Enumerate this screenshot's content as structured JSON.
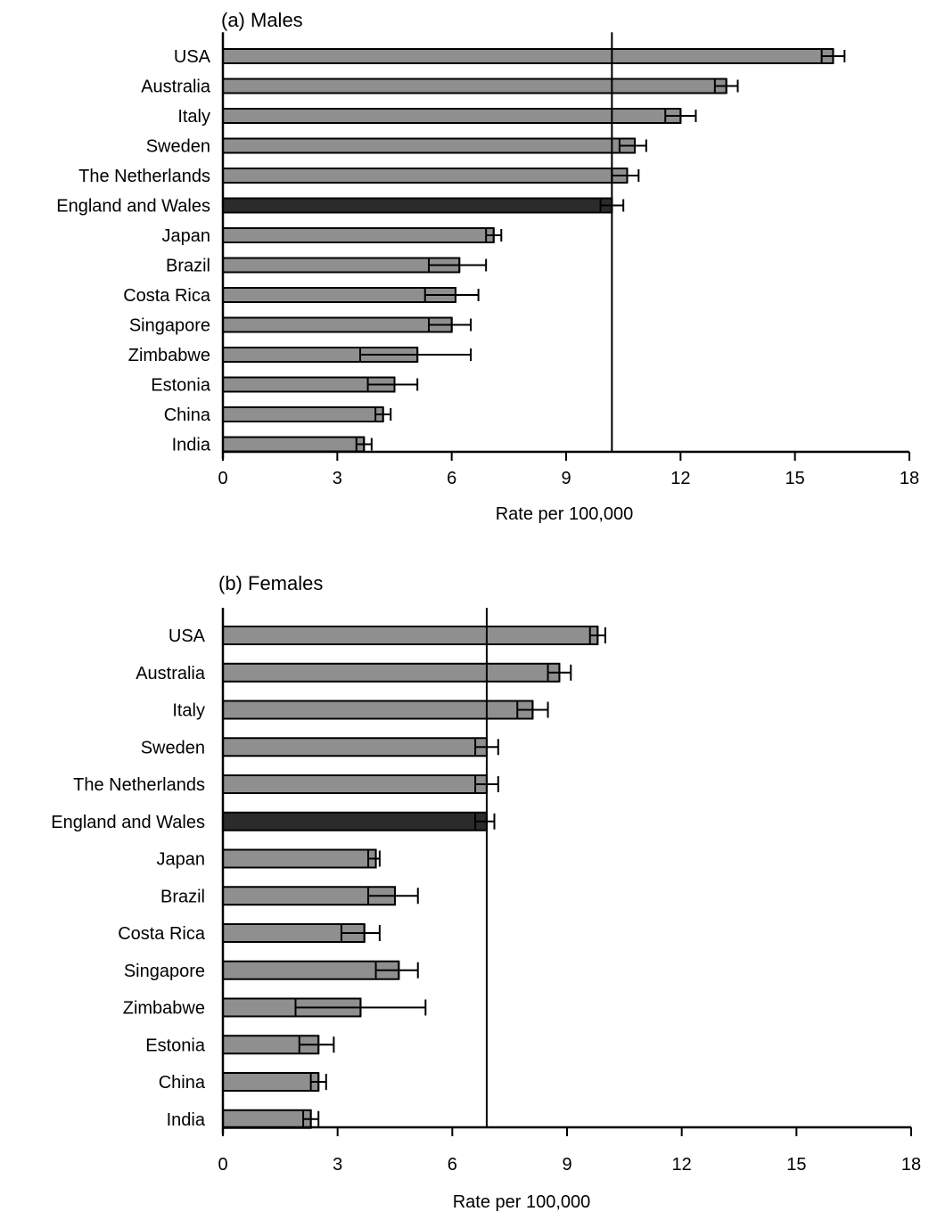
{
  "chart_data": [
    {
      "type": "bar",
      "orientation": "horizontal",
      "title": "(a) Males",
      "xlabel": "Rate per 100,000",
      "ylabel": "",
      "xlim": [
        0,
        18
      ],
      "xticks": [
        0,
        3,
        6,
        9,
        12,
        15,
        18
      ],
      "reference_line": 10.2,
      "highlight_category": "England and Wales",
      "categories": [
        "USA",
        "Australia",
        "Italy",
        "Sweden",
        "The Netherlands",
        "England and Wales",
        "Japan",
        "Brazil",
        "Costa Rica",
        "Singapore",
        "Zimbabwe",
        "Estonia",
        "China",
        "India"
      ],
      "values": [
        16.0,
        13.2,
        12.0,
        10.8,
        10.6,
        10.2,
        7.1,
        6.2,
        6.1,
        6.0,
        5.1,
        4.5,
        4.2,
        3.7
      ],
      "ci_lower": [
        15.7,
        12.9,
        11.6,
        10.4,
        10.2,
        9.9,
        6.9,
        5.4,
        5.3,
        5.4,
        3.6,
        3.8,
        4.0,
        3.5
      ],
      "ci_upper": [
        16.3,
        13.5,
        12.4,
        11.1,
        10.9,
        10.5,
        7.3,
        6.9,
        6.7,
        6.5,
        6.5,
        5.1,
        4.4,
        3.9
      ],
      "grid": false
    },
    {
      "type": "bar",
      "orientation": "horizontal",
      "title": "(b) Females",
      "xlabel": "Rate per 100,000",
      "ylabel": "",
      "xlim": [
        0,
        18
      ],
      "xticks": [
        0,
        3,
        6,
        9,
        12,
        15,
        18
      ],
      "reference_line": 6.9,
      "highlight_category": "England and Wales",
      "categories": [
        "USA",
        "Australia",
        "Italy",
        "Sweden",
        "The Netherlands",
        "England and Wales",
        "Japan",
        "Brazil",
        "Costa Rica",
        "Singapore",
        "Zimbabwe",
        "Estonia",
        "China",
        "India"
      ],
      "values": [
        9.8,
        8.8,
        8.1,
        6.9,
        6.9,
        6.9,
        4.0,
        4.5,
        3.7,
        4.6,
        3.6,
        2.5,
        2.5,
        2.3
      ],
      "ci_lower": [
        9.6,
        8.5,
        7.7,
        6.6,
        6.6,
        6.6,
        3.8,
        3.8,
        3.1,
        4.0,
        1.9,
        2.0,
        2.3,
        2.1
      ],
      "ci_upper": [
        10.0,
        9.1,
        8.5,
        7.2,
        7.2,
        7.1,
        4.1,
        5.1,
        4.1,
        5.1,
        5.3,
        2.9,
        2.7,
        2.5
      ],
      "grid": false
    }
  ],
  "colors": {
    "bar": "#8f8f8f",
    "bar_highlight": "#2b2b2b",
    "outline": "#000000"
  }
}
